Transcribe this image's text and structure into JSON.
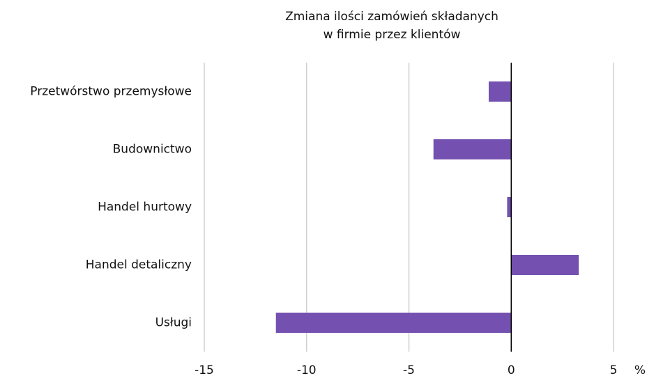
{
  "chart_data": {
    "type": "bar",
    "orientation": "horizontal",
    "title": [
      "Zmiana ilości zamówień składanych",
      "w firmie przez klientów"
    ],
    "categories": [
      "Przetwórstwo przemysłowe",
      "Budownictwo",
      "Handel hurtowy",
      "Handel detaliczny",
      "Usługi"
    ],
    "values": [
      -1.1,
      -3.8,
      -0.2,
      3.3,
      -11.5
    ],
    "color": "#7451b0",
    "xlim": [
      -15,
      5
    ],
    "xticks": [
      -15,
      -10,
      -5,
      0,
      5
    ],
    "x_unit": "%",
    "grid": true
  }
}
